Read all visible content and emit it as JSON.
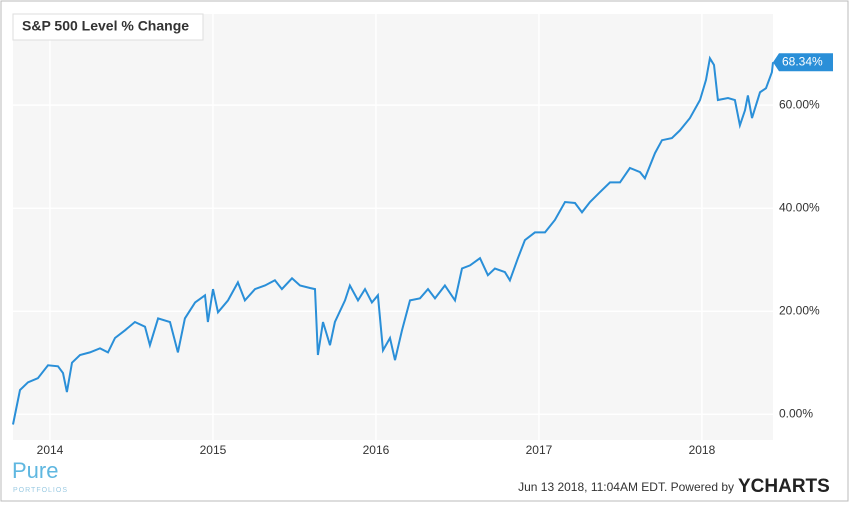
{
  "chart_data": {
    "type": "line",
    "title": "S&P 500 Level % Change",
    "x": [
      2013.773,
      2013.816,
      2013.865,
      2013.926,
      2013.988,
      2014.049,
      2014.08,
      2014.104,
      2014.135,
      2014.184,
      2014.245,
      2014.307,
      2014.356,
      2014.399,
      2014.46,
      2014.521,
      2014.583,
      2014.613,
      2014.663,
      2014.736,
      2014.785,
      2014.828,
      2014.89,
      2014.951,
      2014.969,
      2015.0,
      2015.031,
      2015.092,
      2015.153,
      2015.196,
      2015.258,
      2015.319,
      2015.38,
      2015.423,
      2015.485,
      2015.534,
      2015.595,
      2015.626,
      2015.644,
      2015.675,
      2015.718,
      2015.748,
      2015.81,
      2015.84,
      2015.89,
      2015.933,
      2015.975,
      2016.012,
      2016.043,
      2016.086,
      2016.117,
      2016.16,
      2016.209,
      2016.27,
      2016.319,
      2016.362,
      2016.423,
      2016.485,
      2016.528,
      2016.577,
      2016.638,
      2016.687,
      2016.73,
      2016.791,
      2016.822,
      2016.871,
      2016.914,
      2016.975,
      2017.037,
      2017.098,
      2017.16,
      2017.221,
      2017.264,
      2017.313,
      2017.374,
      2017.436,
      2017.497,
      2017.558,
      2017.62,
      2017.65,
      2017.712,
      2017.755,
      2017.816,
      2017.865,
      2017.926,
      2017.988,
      2018.025,
      2018.049,
      2018.074,
      2018.098,
      2018.16,
      2018.202,
      2018.233,
      2018.264,
      2018.282,
      2018.307,
      2018.356,
      2018.393,
      2018.429,
      2018.436
    ],
    "series": [
      {
        "name": "S&P 500 Level % Change",
        "color": "#2a8fd8",
        "values": [
          -2,
          4.7,
          6.2,
          7,
          9.5,
          9.3,
          8,
          4.3,
          10,
          11.5,
          12,
          12.8,
          12,
          14.8,
          16.3,
          17.9,
          17,
          13.4,
          18.6,
          17.9,
          12,
          18.6,
          21.7,
          23.1,
          17.9,
          24.3,
          19.8,
          22.1,
          25.6,
          22.1,
          24.3,
          25,
          26,
          24.3,
          26.4,
          25,
          24.5,
          24.3,
          11.5,
          17.9,
          13.4,
          17.9,
          22.1,
          25,
          22.1,
          24.3,
          21.7,
          23.1,
          12.4,
          14.8,
          10.5,
          16.3,
          22.1,
          22.5,
          24.3,
          22.5,
          25,
          22.1,
          28.3,
          28.9,
          30.3,
          27,
          28.3,
          27.6,
          26,
          30.3,
          33.8,
          35.3,
          35.3,
          37.7,
          41.2,
          41,
          39.2,
          41.2,
          43.1,
          45,
          45,
          47.8,
          47,
          45.8,
          50.7,
          53.2,
          53.6,
          55.1,
          57.5,
          61,
          64.9,
          69.1,
          67.8,
          61,
          61.4,
          61,
          56.1,
          59,
          61.9,
          57.5,
          62.5,
          63.3,
          66.4,
          68.34
        ],
        "value_labels": [
          null,
          null,
          null,
          null,
          null,
          null,
          null,
          null,
          null,
          null,
          null,
          null,
          null,
          null,
          null,
          null,
          null,
          null,
          null,
          null,
          null,
          null,
          null,
          null,
          null,
          null,
          null,
          null,
          null,
          null,
          null,
          null,
          null,
          null,
          null,
          null,
          null,
          null,
          null,
          null,
          null,
          null,
          null,
          null,
          null,
          null,
          null,
          null,
          null,
          null,
          null,
          null,
          null,
          null,
          null,
          null,
          null,
          null,
          null,
          null,
          null,
          null,
          null,
          null,
          null,
          null,
          null,
          null,
          null,
          null,
          null,
          null,
          null,
          null,
          null,
          null,
          null,
          null,
          null,
          null,
          null,
          null,
          null,
          null,
          null,
          null,
          null,
          null,
          null,
          null,
          null,
          null,
          null,
          null,
          null,
          null,
          null,
          null,
          null,
          "68.34%"
        ]
      }
    ],
    "xlim": [
      2013.773,
      2018.436
    ],
    "xticks": [
      2014,
      2015,
      2016,
      2017,
      2018
    ],
    "ylim": [
      -5,
      77.7
    ],
    "yticks": [
      {
        "value": 0,
        "label": "0.00%"
      },
      {
        "value": 20,
        "label": "20.00%"
      },
      {
        "value": 40,
        "label": "40.00%"
      },
      {
        "value": 60,
        "label": "60.00%"
      }
    ],
    "grid": true
  },
  "footer": {
    "logo": "Pure",
    "logo_sub": "PORTFOLIOS",
    "timestamp": "Jun 13 2018, 11:04AM EDT.  Powered by",
    "brand": "YCHARTS"
  }
}
